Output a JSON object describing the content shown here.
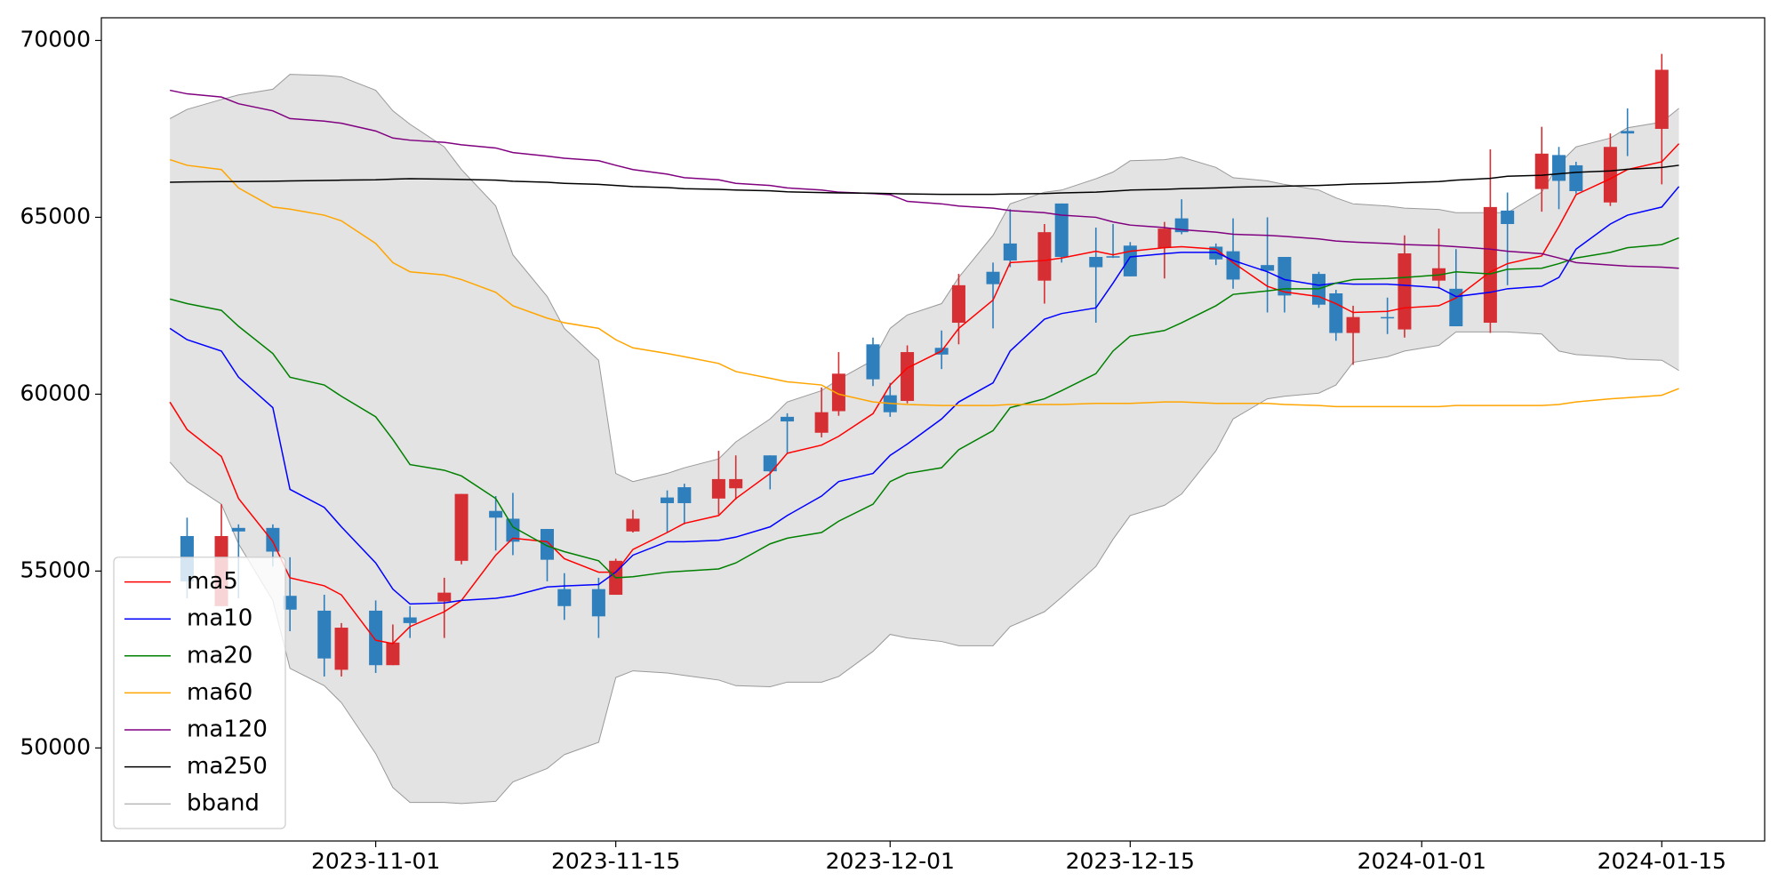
{
  "chart_data": {
    "type": "candlestick",
    "x": [
      "2023-10-20",
      "2023-10-21",
      "2023-10-23",
      "2023-10-24",
      "2023-10-26",
      "2023-10-27",
      "2023-10-29",
      "2023-10-30",
      "2023-11-01",
      "2023-11-02",
      "2023-11-03",
      "2023-11-05",
      "2023-11-06",
      "2023-11-08",
      "2023-11-09",
      "2023-11-11",
      "2023-11-12",
      "2023-11-14",
      "2023-11-15",
      "2023-11-16",
      "2023-11-18",
      "2023-11-19",
      "2023-11-21",
      "2023-11-22",
      "2023-11-24",
      "2023-11-25",
      "2023-11-27",
      "2023-11-28",
      "2023-11-30",
      "2023-12-01",
      "2023-12-02",
      "2023-12-04",
      "2023-12-05",
      "2023-12-07",
      "2023-12-08",
      "2023-12-10",
      "2023-12-11",
      "2023-12-13",
      "2023-12-14",
      "2023-12-15",
      "2023-12-17",
      "2023-12-18",
      "2023-12-20",
      "2023-12-21",
      "2023-12-23",
      "2023-12-24",
      "2023-12-26",
      "2023-12-27",
      "2023-12-28",
      "2023-12-30",
      "2023-12-31",
      "2024-01-02",
      "2024-01-03",
      "2024-01-05",
      "2024-01-06",
      "2024-01-08",
      "2024-01-09",
      "2024-01-10",
      "2024-01-12",
      "2024-01-13",
      "2024-01-15",
      "2024-01-16"
    ],
    "candles": {
      "up_color": "#d62f33",
      "down_color": "#2f7fbd",
      "open": [
        null,
        55990,
        54010,
        56220,
        56220,
        54300,
        53880,
        52210,
        53880,
        52340,
        53690,
        54140,
        55290,
        56700,
        56480,
        56190,
        54490,
        54490,
        54330,
        56120,
        57080,
        57370,
        57050,
        57340,
        58270,
        59360,
        58910,
        59520,
        61410,
        59970,
        59810,
        61310,
        62020,
        63460,
        64260,
        63210,
        65390,
        63880,
        63900,
        64200,
        64140,
        64970,
        64170,
        64040,
        63650,
        63880,
        63400,
        62850,
        61730,
        62180,
        61830,
        63210,
        62980,
        62020,
        65190,
        65800,
        66760,
        66470,
        65420,
        67440,
        67500,
        null
      ],
      "high": [
        null,
        56510,
        56890,
        56320,
        56320,
        55390,
        54330,
        53530,
        54170,
        53490,
        54010,
        54810,
        57180,
        57120,
        57210,
        56190,
        54940,
        54810,
        55350,
        56730,
        57280,
        57470,
        58400,
        58270,
        58270,
        59460,
        60190,
        61190,
        61600,
        60320,
        61380,
        61800,
        63400,
        63720,
        65230,
        64810,
        65390,
        64710,
        64810,
        64300,
        64870,
        65510,
        64260,
        64970,
        65000,
        63880,
        63460,
        62950,
        62500,
        62730,
        64490,
        64680,
        64100,
        66920,
        65700,
        67560,
        66990,
        66570,
        67370,
        68080,
        69620,
        null
      ],
      "low": [
        null,
        54230,
        54010,
        54230,
        55130,
        53300,
        52020,
        52020,
        52120,
        52340,
        53110,
        53110,
        55190,
        55580,
        55450,
        54710,
        53620,
        53110,
        54330,
        56090,
        56090,
        56320,
        56600,
        57020,
        57310,
        58330,
        58780,
        59390,
        60230,
        59360,
        59740,
        60710,
        61410,
        61860,
        63590,
        62560,
        63720,
        62020,
        63850,
        63330,
        63270,
        64520,
        63650,
        62980,
        62310,
        62310,
        62440,
        61510,
        60830,
        61700,
        61600,
        62980,
        61920,
        61730,
        63080,
        65160,
        65230,
        65670,
        65320,
        66730,
        65930,
        null
      ],
      "close": [
        null,
        54710,
        55990,
        56120,
        55550,
        53910,
        52530,
        53400,
        52340,
        52980,
        53530,
        54390,
        57180,
        56510,
        55830,
        55320,
        54010,
        53720,
        55290,
        56480,
        56920,
        56920,
        57600,
        57600,
        57820,
        59230,
        59490,
        60580,
        60420,
        59490,
        61190,
        61120,
        63080,
        63110,
        63780,
        64580,
        63880,
        63590,
        63860,
        63330,
        64680,
        64580,
        63810,
        63240,
        63490,
        62790,
        62530,
        61730,
        62180,
        62150,
        63980,
        63560,
        61920,
        65290,
        64810,
        66800,
        66030,
        65740,
        66990,
        67370,
        69170,
        null
      ]
    },
    "series": [
      {
        "name": "ma5",
        "color": "#ff0000",
        "values": [
          59776,
          59000,
          58238,
          57052,
          55834,
          54808,
          54584,
          54327,
          53045,
          52950,
          53430,
          53850,
          54170,
          55450,
          55930,
          55830,
          55350,
          54970,
          54970,
          55610,
          56090,
          56350,
          56570,
          57050,
          57760,
          58330,
          58560,
          58810,
          59450,
          60260,
          60740,
          61220,
          61860,
          62660,
          63720,
          63780,
          63850,
          64040,
          63940,
          64040,
          64140,
          64170,
          64100,
          63720,
          63050,
          62890,
          62760,
          62560,
          62310,
          62340,
          62440,
          62500,
          62720,
          63460,
          63690,
          63910,
          64740,
          65640,
          66090,
          66350,
          66570,
          67080
        ]
      },
      {
        "name": "ma10",
        "color": "#0000ff",
        "values": [
          61860,
          61540,
          61220,
          60480,
          59620,
          57310,
          56800,
          56250,
          55230,
          54490,
          54070,
          54100,
          54170,
          54230,
          54300,
          54550,
          54580,
          54620,
          54970,
          55450,
          55830,
          55830,
          55870,
          55960,
          56250,
          56570,
          57120,
          57530,
          57760,
          58270,
          58590,
          59300,
          59780,
          60320,
          61220,
          62120,
          62280,
          62440,
          63140,
          63880,
          63970,
          64010,
          64010,
          63780,
          63460,
          63240,
          63080,
          63140,
          63110,
          63110,
          63080,
          63010,
          62760,
          62880,
          62980,
          63050,
          63300,
          64100,
          64810,
          65060,
          65290,
          65870
        ]
      },
      {
        "name": "ma20",
        "color": "#008000",
        "values": [
          62690,
          62560,
          62370,
          61920,
          61150,
          60480,
          60260,
          59940,
          59360,
          58720,
          58010,
          57850,
          57690,
          57050,
          56250,
          55710,
          55550,
          55290,
          54810,
          54840,
          54970,
          55000,
          55060,
          55230,
          55770,
          55930,
          56090,
          56410,
          56890,
          57530,
          57760,
          57920,
          58430,
          58970,
          59620,
          59870,
          60100,
          60580,
          61220,
          61640,
          61800,
          62020,
          62500,
          62820,
          62920,
          62980,
          62980,
          63140,
          63240,
          63270,
          63300,
          63370,
          63460,
          63400,
          63530,
          63560,
          63690,
          63850,
          64010,
          64140,
          64230,
          64420
        ]
      },
      {
        "name": "ma60",
        "color": "#ffa500",
        "values": [
          66630,
          66470,
          66350,
          65830,
          65290,
          65230,
          65060,
          64900,
          64260,
          63720,
          63460,
          63370,
          63240,
          62880,
          62500,
          62150,
          62020,
          61860,
          61540,
          61310,
          61150,
          61060,
          60870,
          60640,
          60450,
          60350,
          60260,
          60000,
          59780,
          59740,
          59710,
          59680,
          59680,
          59680,
          59710,
          59710,
          59710,
          59740,
          59740,
          59740,
          59780,
          59780,
          59740,
          59740,
          59740,
          59710,
          59680,
          59650,
          59650,
          59650,
          59650,
          59650,
          59680,
          59680,
          59680,
          59680,
          59710,
          59780,
          59870,
          59900,
          59970,
          60160
        ]
      },
      {
        "name": "ma120",
        "color": "#800080",
        "values": [
          68590,
          68490,
          68400,
          68210,
          68010,
          67790,
          67720,
          67660,
          67440,
          67240,
          67180,
          67120,
          67050,
          66960,
          66830,
          66730,
          66670,
          66600,
          66470,
          66350,
          66220,
          66120,
          66060,
          65960,
          65900,
          65830,
          65770,
          65710,
          65670,
          65640,
          65450,
          65380,
          65320,
          65260,
          65190,
          65130,
          65060,
          65000,
          64870,
          64780,
          64710,
          64650,
          64580,
          64520,
          64490,
          64460,
          64390,
          64330,
          64300,
          64260,
          64230,
          64200,
          64170,
          64100,
          64040,
          63970,
          63850,
          63720,
          63650,
          63620,
          63590,
          63560
        ]
      },
      {
        "name": "ma250",
        "color": "#000000",
        "values": [
          65990,
          66000,
          66010,
          66010,
          66020,
          66030,
          66040,
          66050,
          66060,
          66080,
          66090,
          66080,
          66070,
          66050,
          66020,
          65990,
          65960,
          65930,
          65900,
          65870,
          65840,
          65810,
          65790,
          65770,
          65750,
          65720,
          65700,
          65690,
          65680,
          65670,
          65660,
          65650,
          65650,
          65650,
          65660,
          65670,
          65690,
          65710,
          65740,
          65770,
          65790,
          65810,
          65830,
          65850,
          65870,
          65880,
          65900,
          65920,
          65940,
          65960,
          65980,
          66010,
          66050,
          66100,
          66160,
          66190,
          66230,
          66270,
          66310,
          66360,
          66410,
          66470
        ]
      }
    ],
    "band": {
      "name": "bband",
      "color": "#999999",
      "fill": "#e3e3e3",
      "upper": [
        67790,
        68050,
        68330,
        68460,
        68620,
        69040,
        69010,
        68970,
        68590,
        68010,
        67630,
        66990,
        66350,
        65320,
        63940,
        62760,
        61860,
        60960,
        57760,
        57530,
        57760,
        57920,
        58170,
        58650,
        59300,
        59780,
        60100,
        60420,
        60960,
        61860,
        62240,
        62560,
        63300,
        64490,
        65380,
        65710,
        65770,
        66090,
        66280,
        66600,
        66630,
        66700,
        66410,
        66120,
        66030,
        65930,
        65770,
        65550,
        65380,
        65320,
        65260,
        65220,
        65130,
        65130,
        65130,
        65710,
        66510,
        66990,
        67240,
        67530,
        67690,
        68080
      ],
      "lower": [
        58080,
        57530,
        56890,
        55770,
        54170,
        52250,
        51760,
        51280,
        49840,
        48880,
        48460,
        48460,
        48430,
        48490,
        49040,
        49420,
        49810,
        50160,
        51990,
        52180,
        52120,
        52050,
        51920,
        51760,
        51730,
        51860,
        51860,
        52020,
        52730,
        53210,
        53110,
        53010,
        52890,
        52890,
        53430,
        53850,
        54260,
        55130,
        55900,
        56570,
        56860,
        57180,
        58400,
        59300,
        59870,
        59940,
        60030,
        60260,
        60900,
        61060,
        61220,
        61380,
        61760,
        61760,
        61760,
        61700,
        61220,
        61120,
        61060,
        60990,
        60960,
        60670
      ]
    },
    "xlim": [
      "2023-10-16",
      "2024-01-21"
    ],
    "xticks": [
      "2023-11-01",
      "2023-11-15",
      "2023-12-01",
      "2023-12-15",
      "2024-01-01",
      "2024-01-15"
    ],
    "ylim": [
      47370,
      70640
    ],
    "yticks": [
      50000,
      55000,
      60000,
      65000,
      70000
    ],
    "grid": false,
    "legend": "lower left"
  }
}
